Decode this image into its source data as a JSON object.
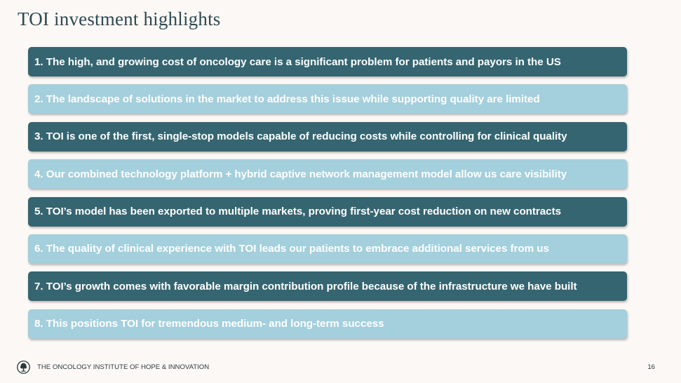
{
  "slide": {
    "title": "TOI investment highlights"
  },
  "highlights": [
    {
      "text": "1. The high, and growing cost of oncology care is a significant problem for patients and payors in the US",
      "style": "dark"
    },
    {
      "text": "2. The landscape of solutions in the market to address this issue while supporting quality are limited",
      "style": "light"
    },
    {
      "text": "3. TOI is one of the first, single-stop models capable of reducing costs while controlling for clinical quality",
      "style": "dark"
    },
    {
      "text": "4. Our combined technology platform + hybrid captive network management model allow us care visibility",
      "style": "light"
    },
    {
      "text": "5. TOI’s model has been exported to multiple markets, proving first-year cost reduction on new contracts",
      "style": "dark"
    },
    {
      "text": "6. The quality of clinical experience with TOI leads our patients to embrace additional services from us",
      "style": "light"
    },
    {
      "text": "7. TOI’s growth comes with favorable margin contribution profile because of the infrastructure we have built",
      "style": "dark"
    },
    {
      "text": "8. This positions TOI for tremendous medium- and long-term success",
      "style": "light"
    }
  ],
  "footer": {
    "logo_icon": "tree-logo-icon",
    "organization": "THE ONCOLOGY INSTITUTE OF HOPE & INNOVATION",
    "page_number": "16"
  },
  "colors": {
    "background": "#fcf8f5",
    "dark_bar": "#356570",
    "light_bar": "#a4cfdc",
    "title": "#2e4a52"
  }
}
